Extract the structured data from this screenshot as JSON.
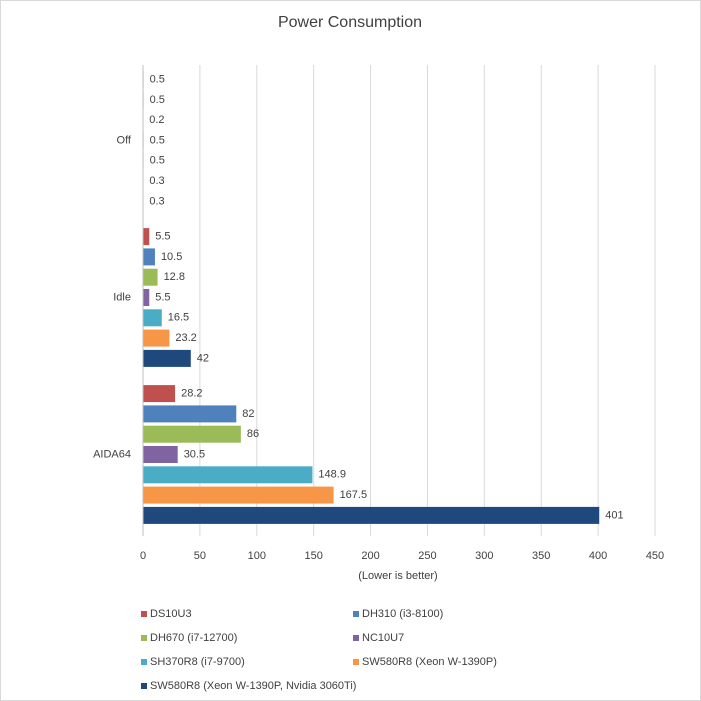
{
  "chart_data": {
    "type": "hbar",
    "title": "Power Consumption",
    "x_label": "(Lower  is better)",
    "categories": [
      "Off",
      "Idle",
      "AIDA64"
    ],
    "series": [
      {
        "name": "DS10U3",
        "color": "#c0504d",
        "values": [
          0.5,
          5.5,
          28.2
        ]
      },
      {
        "name": "DH310 (i3-8100)",
        "color": "#4f81bd",
        "values": [
          0.5,
          10.5,
          82
        ]
      },
      {
        "name": "DH670 (i7-12700)",
        "color": "#9bbb59",
        "values": [
          0.2,
          12.8,
          86
        ]
      },
      {
        "name": "NC10U7",
        "color": "#8064a2",
        "values": [
          0.5,
          5.5,
          30.5
        ]
      },
      {
        "name": "SH370R8 (i7-9700)",
        "color": "#4bacc6",
        "values": [
          0.5,
          16.5,
          148.9
        ]
      },
      {
        "name": "SW580R8 (Xeon W-1390P)",
        "color": "#f79646",
        "values": [
          0.3,
          23.2,
          167.5
        ]
      },
      {
        "name": "SW580R8 (Xeon W-1390P, Nvidia 3060Ti)",
        "color": "#1f497d",
        "values": [
          0.3,
          42,
          401
        ]
      }
    ],
    "xlim": [
      0,
      450
    ],
    "xticks": [
      0,
      50,
      100,
      150,
      200,
      250,
      300,
      350,
      400,
      450
    ],
    "grid": true,
    "legend": "bottom"
  }
}
